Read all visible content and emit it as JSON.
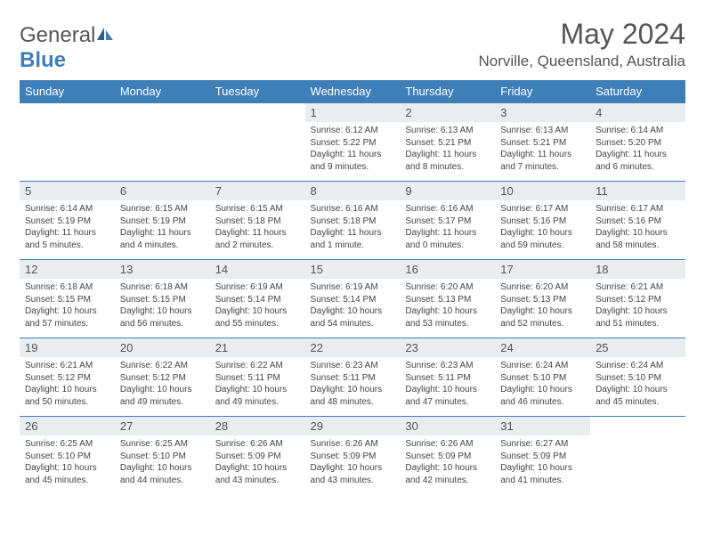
{
  "brand": {
    "name1": "General",
    "name2": "Blue"
  },
  "title": "May 2024",
  "location": "Norville, Queensland, Australia",
  "colors": {
    "header_bg": "#3e7fb8",
    "daynum_bg": "#e9edef",
    "text": "#555555",
    "border": "#3e7fb8"
  },
  "dayHeaders": [
    "Sunday",
    "Monday",
    "Tuesday",
    "Wednesday",
    "Thursday",
    "Friday",
    "Saturday"
  ],
  "weeks": [
    [
      {
        "n": "",
        "sr": "",
        "ss": "",
        "dl": ""
      },
      {
        "n": "",
        "sr": "",
        "ss": "",
        "dl": ""
      },
      {
        "n": "",
        "sr": "",
        "ss": "",
        "dl": ""
      },
      {
        "n": "1",
        "sr": "Sunrise: 6:12 AM",
        "ss": "Sunset: 5:22 PM",
        "dl": "Daylight: 11 hours and 9 minutes."
      },
      {
        "n": "2",
        "sr": "Sunrise: 6:13 AM",
        "ss": "Sunset: 5:21 PM",
        "dl": "Daylight: 11 hours and 8 minutes."
      },
      {
        "n": "3",
        "sr": "Sunrise: 6:13 AM",
        "ss": "Sunset: 5:21 PM",
        "dl": "Daylight: 11 hours and 7 minutes."
      },
      {
        "n": "4",
        "sr": "Sunrise: 6:14 AM",
        "ss": "Sunset: 5:20 PM",
        "dl": "Daylight: 11 hours and 6 minutes."
      }
    ],
    [
      {
        "n": "5",
        "sr": "Sunrise: 6:14 AM",
        "ss": "Sunset: 5:19 PM",
        "dl": "Daylight: 11 hours and 5 minutes."
      },
      {
        "n": "6",
        "sr": "Sunrise: 6:15 AM",
        "ss": "Sunset: 5:19 PM",
        "dl": "Daylight: 11 hours and 4 minutes."
      },
      {
        "n": "7",
        "sr": "Sunrise: 6:15 AM",
        "ss": "Sunset: 5:18 PM",
        "dl": "Daylight: 11 hours and 2 minutes."
      },
      {
        "n": "8",
        "sr": "Sunrise: 6:16 AM",
        "ss": "Sunset: 5:18 PM",
        "dl": "Daylight: 11 hours and 1 minute."
      },
      {
        "n": "9",
        "sr": "Sunrise: 6:16 AM",
        "ss": "Sunset: 5:17 PM",
        "dl": "Daylight: 11 hours and 0 minutes."
      },
      {
        "n": "10",
        "sr": "Sunrise: 6:17 AM",
        "ss": "Sunset: 5:16 PM",
        "dl": "Daylight: 10 hours and 59 minutes."
      },
      {
        "n": "11",
        "sr": "Sunrise: 6:17 AM",
        "ss": "Sunset: 5:16 PM",
        "dl": "Daylight: 10 hours and 58 minutes."
      }
    ],
    [
      {
        "n": "12",
        "sr": "Sunrise: 6:18 AM",
        "ss": "Sunset: 5:15 PM",
        "dl": "Daylight: 10 hours and 57 minutes."
      },
      {
        "n": "13",
        "sr": "Sunrise: 6:18 AM",
        "ss": "Sunset: 5:15 PM",
        "dl": "Daylight: 10 hours and 56 minutes."
      },
      {
        "n": "14",
        "sr": "Sunrise: 6:19 AM",
        "ss": "Sunset: 5:14 PM",
        "dl": "Daylight: 10 hours and 55 minutes."
      },
      {
        "n": "15",
        "sr": "Sunrise: 6:19 AM",
        "ss": "Sunset: 5:14 PM",
        "dl": "Daylight: 10 hours and 54 minutes."
      },
      {
        "n": "16",
        "sr": "Sunrise: 6:20 AM",
        "ss": "Sunset: 5:13 PM",
        "dl": "Daylight: 10 hours and 53 minutes."
      },
      {
        "n": "17",
        "sr": "Sunrise: 6:20 AM",
        "ss": "Sunset: 5:13 PM",
        "dl": "Daylight: 10 hours and 52 minutes."
      },
      {
        "n": "18",
        "sr": "Sunrise: 6:21 AM",
        "ss": "Sunset: 5:12 PM",
        "dl": "Daylight: 10 hours and 51 minutes."
      }
    ],
    [
      {
        "n": "19",
        "sr": "Sunrise: 6:21 AM",
        "ss": "Sunset: 5:12 PM",
        "dl": "Daylight: 10 hours and 50 minutes."
      },
      {
        "n": "20",
        "sr": "Sunrise: 6:22 AM",
        "ss": "Sunset: 5:12 PM",
        "dl": "Daylight: 10 hours and 49 minutes."
      },
      {
        "n": "21",
        "sr": "Sunrise: 6:22 AM",
        "ss": "Sunset: 5:11 PM",
        "dl": "Daylight: 10 hours and 49 minutes."
      },
      {
        "n": "22",
        "sr": "Sunrise: 6:23 AM",
        "ss": "Sunset: 5:11 PM",
        "dl": "Daylight: 10 hours and 48 minutes."
      },
      {
        "n": "23",
        "sr": "Sunrise: 6:23 AM",
        "ss": "Sunset: 5:11 PM",
        "dl": "Daylight: 10 hours and 47 minutes."
      },
      {
        "n": "24",
        "sr": "Sunrise: 6:24 AM",
        "ss": "Sunset: 5:10 PM",
        "dl": "Daylight: 10 hours and 46 minutes."
      },
      {
        "n": "25",
        "sr": "Sunrise: 6:24 AM",
        "ss": "Sunset: 5:10 PM",
        "dl": "Daylight: 10 hours and 45 minutes."
      }
    ],
    [
      {
        "n": "26",
        "sr": "Sunrise: 6:25 AM",
        "ss": "Sunset: 5:10 PM",
        "dl": "Daylight: 10 hours and 45 minutes."
      },
      {
        "n": "27",
        "sr": "Sunrise: 6:25 AM",
        "ss": "Sunset: 5:10 PM",
        "dl": "Daylight: 10 hours and 44 minutes."
      },
      {
        "n": "28",
        "sr": "Sunrise: 6:26 AM",
        "ss": "Sunset: 5:09 PM",
        "dl": "Daylight: 10 hours and 43 minutes."
      },
      {
        "n": "29",
        "sr": "Sunrise: 6:26 AM",
        "ss": "Sunset: 5:09 PM",
        "dl": "Daylight: 10 hours and 43 minutes."
      },
      {
        "n": "30",
        "sr": "Sunrise: 6:26 AM",
        "ss": "Sunset: 5:09 PM",
        "dl": "Daylight: 10 hours and 42 minutes."
      },
      {
        "n": "31",
        "sr": "Sunrise: 6:27 AM",
        "ss": "Sunset: 5:09 PM",
        "dl": "Daylight: 10 hours and 41 minutes."
      },
      {
        "n": "",
        "sr": "",
        "ss": "",
        "dl": ""
      }
    ]
  ]
}
